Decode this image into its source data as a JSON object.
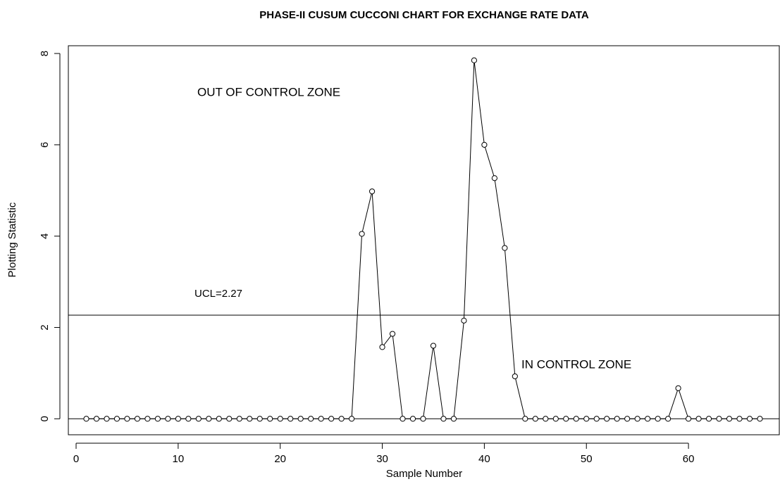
{
  "chart_data": {
    "type": "line",
    "title": "PHASE-II CUSUM CUCCONI CHART FOR EXCHANGE RATE DATA",
    "x_label": "Sample Number",
    "y_label": "Plotting Statistic",
    "x": [
      1,
      2,
      3,
      4,
      5,
      6,
      7,
      8,
      9,
      10,
      11,
      12,
      13,
      14,
      15,
      16,
      17,
      18,
      19,
      20,
      21,
      22,
      23,
      24,
      25,
      26,
      27,
      28,
      29,
      30,
      31,
      32,
      33,
      34,
      35,
      36,
      37,
      38,
      39,
      40,
      41,
      42,
      43,
      44,
      45,
      46,
      47,
      48,
      49,
      50,
      51,
      52,
      53,
      54,
      55,
      56,
      57,
      58,
      59,
      60,
      61,
      62,
      63,
      64,
      65,
      66,
      67
    ],
    "series": [
      {
        "name": "Plotting Statistic",
        "color": "#000000",
        "values": [
          0,
          0,
          0,
          0,
          0,
          0,
          0,
          0,
          0,
          0,
          0,
          0,
          0,
          0,
          0,
          0,
          0,
          0,
          0,
          0,
          0,
          0,
          0,
          0,
          0,
          0,
          0,
          4.05,
          4.98,
          1.57,
          1.86,
          0,
          0,
          0,
          1.6,
          0,
          0,
          2.15,
          7.85,
          6.0,
          5.27,
          3.74,
          0.93,
          0,
          0,
          0,
          0,
          0,
          0,
          0,
          0,
          0,
          0,
          0,
          0,
          0,
          0,
          0,
          0.67,
          0,
          0,
          0,
          0,
          0,
          0,
          0,
          0
        ]
      }
    ],
    "reference_lines": [
      {
        "value": 2.27,
        "label": "UCL=2.27"
      },
      {
        "value": 0
      }
    ],
    "annotations": [
      "OUT OF CONTROL ZONE",
      "IN CONTROL ZONE"
    ],
    "xlim": [
      -0.76,
      68.9
    ],
    "ylim": [
      -0.35,
      8.17
    ],
    "xticks": [
      0,
      10,
      20,
      30,
      40,
      50,
      60
    ],
    "yticks": [
      0,
      2,
      4,
      6,
      8
    ]
  }
}
